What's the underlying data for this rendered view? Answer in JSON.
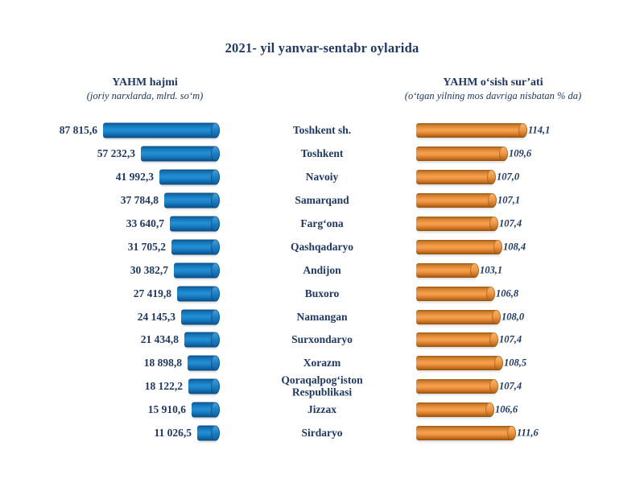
{
  "title": "2021- yil yanvar-sentabr oylarida",
  "left_header": {
    "title": "YAHM hajmi",
    "subtitle": "(joriy narxlarda, mlrd. so‘m)"
  },
  "right_header": {
    "title": "YAHM o‘sish sur’ati",
    "subtitle": "(o‘tgan yilning mos davriga nisbatan % da)"
  },
  "colors": {
    "text": "#1f3864",
    "volume_bar": "#1b82c8",
    "growth_bar": "#f09a45",
    "background": "#ffffff"
  },
  "chart_data": [
    {
      "type": "bar",
      "orientation": "horizontal",
      "alignment": "right-aligned",
      "title": "YAHM hajmi",
      "subtitle": "(joriy narxlarda, mlrd. so‘m)",
      "unit": "mlrd. so‘m",
      "bar_color": "#1b82c8",
      "categories": [
        "Toshkent sh.",
        "Toshkent",
        "Navoiy",
        "Samarqand",
        "Farg‘ona",
        "Qashqadaryo",
        "Andijon",
        "Buxoro",
        "Namangan",
        "Surxondaryo",
        "Xorazm",
        "Qoraqalpog‘iston Respublikasi",
        "Jizzax",
        "Sirdaryo"
      ],
      "values": [
        87815.6,
        57232.3,
        41992.3,
        37784.8,
        33640.7,
        31705.2,
        30382.7,
        27419.8,
        24145.3,
        21434.8,
        18898.8,
        18122.2,
        15910.6,
        11026.5
      ],
      "value_labels": [
        "87 815,6",
        "57 232,3",
        "41 992,3",
        "37 784,8",
        "33 640,7",
        "31 705,2",
        "30 382,7",
        "27 419,8",
        "24 145,3",
        "21 434,8",
        "18 898,8",
        "18 122,2",
        "15 910,6",
        "11 026,5"
      ]
    },
    {
      "type": "bar",
      "orientation": "horizontal",
      "alignment": "left-aligned",
      "title": "YAHM o‘sish sur’ati",
      "subtitle": "(o‘tgan yilning mos davriga nisbatan % da)",
      "unit": "%",
      "bar_color": "#f09a45",
      "axis_min": 90,
      "categories": [
        "Toshkent sh.",
        "Toshkent",
        "Navoiy",
        "Samarqand",
        "Farg‘ona",
        "Qashqadaryo",
        "Andijon",
        "Buxoro",
        "Namangan",
        "Surxondaryo",
        "Xorazm",
        "Qoraqalpog‘iston Respublikasi",
        "Jizzax",
        "Sirdaryo"
      ],
      "values": [
        114.1,
        109.6,
        107.0,
        107.1,
        107.4,
        108.4,
        103.1,
        106.8,
        108.0,
        107.4,
        108.5,
        107.4,
        106.6,
        111.6
      ],
      "value_labels": [
        "114,1",
        "109,6",
        "107,0",
        "107,1",
        "107,4",
        "108,4",
        "103,1",
        "106,8",
        "108,0",
        "107,4",
        "108,5",
        "107,4",
        "106,6",
        "111,6"
      ]
    }
  ]
}
